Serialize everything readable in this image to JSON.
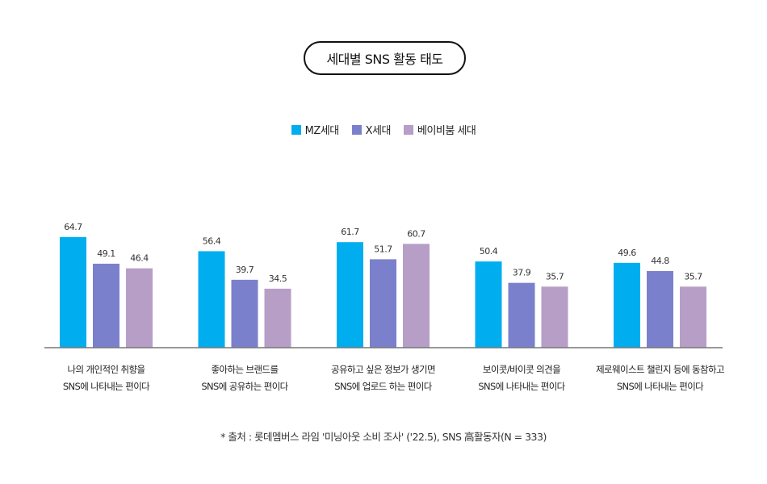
{
  "chart_data": {
    "type": "bar",
    "title": "세대별 SNS 활동 태도",
    "categories": [
      [
        "나의 개인적인 취향을",
        "SNS에 나타내는 편이다"
      ],
      [
        "좋아하는 브랜드를",
        "SNS에 공유하는 편이다"
      ],
      [
        "공유하고 싶은 정보가 생기면",
        "SNS에 업로드 하는 편이다"
      ],
      [
        "보이콧/바이콧 의견을",
        "SNS에 나타내는 편이다"
      ],
      [
        "제로웨이스트 챌린지 등에 동참하고",
        "SNS에 나타내는 편이다"
      ]
    ],
    "series": [
      {
        "name": "MZ세대",
        "color": "#00AEEF",
        "values": [
          64.7,
          56.4,
          61.7,
          50.4,
          49.6
        ]
      },
      {
        "name": "X세대",
        "color": "#7B80CC",
        "values": [
          49.1,
          39.7,
          51.7,
          37.9,
          44.8
        ]
      },
      {
        "name": "베이비붐 세대",
        "color": "#B79EC7",
        "values": [
          46.4,
          34.5,
          60.7,
          35.7,
          35.7
        ]
      }
    ],
    "value_labels": [
      [
        "64.7",
        "56.4",
        "61.7",
        "50.4",
        "49.6"
      ],
      [
        "49.1",
        "39.7",
        "51.7",
        "37.9",
        "44.8"
      ],
      [
        "46.4",
        "34.5",
        "60.7",
        "35.7",
        "35.7"
      ]
    ],
    "ylim": [
      0,
      100
    ],
    "grid": false,
    "legend_position": "top-center",
    "source": "* 출처 : 롯데멤버스 라임 '미닝아웃 소비 조사' ('22.5), SNS 高활동자(N = 333)"
  }
}
